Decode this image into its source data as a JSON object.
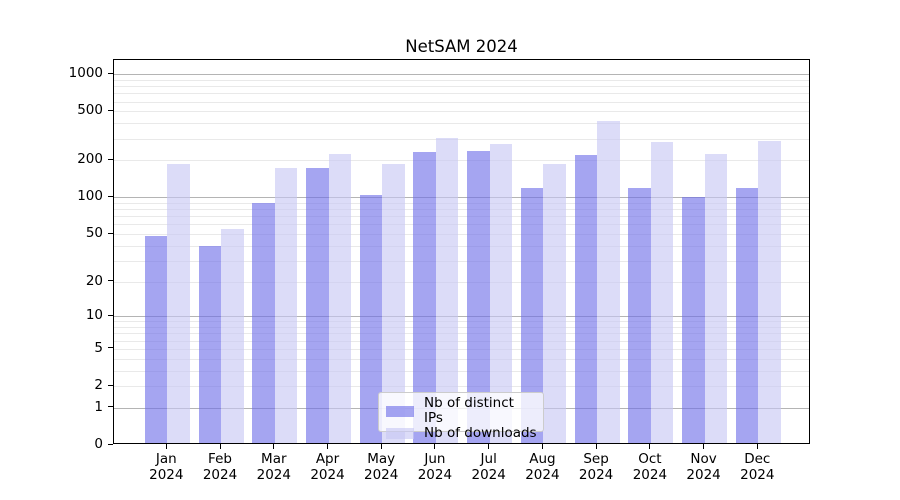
{
  "title": "NetSAM 2024",
  "legend": {
    "items": [
      {
        "label": "Nb of distinct IPs"
      },
      {
        "label": "Nb of downloads"
      }
    ]
  },
  "y_axis": {
    "ticks": [
      0,
      1,
      2,
      5,
      10,
      20,
      50,
      100,
      200,
      500,
      1000
    ]
  },
  "x_axis": {
    "year": "2024",
    "months": [
      "Jan",
      "Feb",
      "Mar",
      "Apr",
      "May",
      "Jun",
      "Jul",
      "Aug",
      "Sep",
      "Oct",
      "Nov",
      "Dec"
    ]
  },
  "colors": {
    "bar_distinct_ips": "rgba(110,110,232,0.62)",
    "bar_distinct_ips_hex": "#a5a5f0",
    "bar_downloads": "rgba(199,199,244,0.62)",
    "bar_downloads_hex": "#dcdcf8",
    "grid_minor": "#e9e9e9",
    "grid_major": "#b4b4b4",
    "spine": "#000000",
    "text": "#000000",
    "legend_border": "#cccccc"
  },
  "chart_data": {
    "type": "bar",
    "title": "NetSAM 2024",
    "categories": [
      "Jan 2024",
      "Feb 2024",
      "Mar 2024",
      "Apr 2024",
      "May 2024",
      "Jun 2024",
      "Jul 2024",
      "Aug 2024",
      "Sep 2024",
      "Oct 2024",
      "Nov 2024",
      "Dec 2024"
    ],
    "series": [
      {
        "name": "Nb of distinct IPs",
        "values": [
          46,
          38,
          87,
          168,
          100,
          227,
          231,
          114,
          213,
          115,
          97,
          114
        ]
      },
      {
        "name": "Nb of downloads",
        "values": [
          181,
          53,
          166,
          219,
          181,
          292,
          263,
          181,
          400,
          273,
          217,
          277
        ]
      }
    ],
    "xlabel": "",
    "ylabel": "",
    "y_scale": "symlog (pixel position proportional to ln(1+value))",
    "y_ticks": [
      0,
      1,
      2,
      5,
      10,
      20,
      50,
      100,
      200,
      500,
      1000
    ],
    "ylim": [
      0,
      1305
    ],
    "grid": "horizontal minor lines at 2-9 multiples, darker lines at 1/10/100/1000",
    "legend_position": "lower center"
  }
}
